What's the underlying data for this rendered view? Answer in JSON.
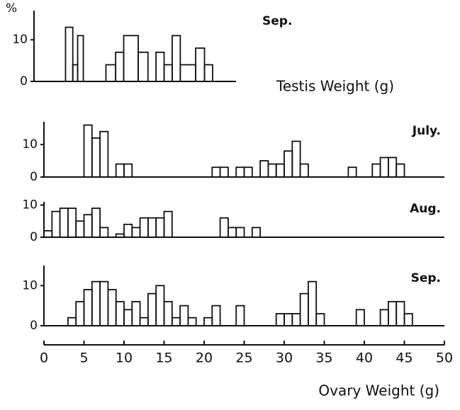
{
  "chart_data": [
    {
      "type": "histogram",
      "title": "Sep.",
      "xlabel": "Testis Weight (g)",
      "ylabel": "%",
      "bins": [
        3.9,
        4.8,
        5.4,
        6.1,
        8.9,
        10.1,
        11.1,
        12.9,
        14.1,
        15.1,
        16.1,
        17.1,
        18.1,
        20.0,
        21.1,
        22.1
      ],
      "values": [
        13,
        4,
        11,
        0,
        4,
        7,
        11,
        7,
        0,
        7,
        4,
        11,
        4,
        8,
        4
      ],
      "xlim": [
        0,
        25
      ],
      "ylim": [
        0,
        17
      ],
      "yticks": [
        0,
        10
      ],
      "color": "#111111"
    },
    {
      "type": "histogram",
      "title": "July.",
      "bins": [
        5,
        6,
        7,
        8,
        9,
        10,
        11,
        12,
        13,
        14,
        15,
        16,
        17,
        18,
        19,
        20,
        21,
        22,
        23,
        24,
        25,
        26,
        27,
        28,
        29,
        30,
        31,
        32,
        33,
        34,
        35,
        36,
        37,
        38,
        39,
        40,
        41,
        42,
        43,
        44,
        45
      ],
      "values": [
        16,
        12,
        14,
        0,
        4,
        4,
        0,
        0,
        0,
        0,
        0,
        0,
        0,
        0,
        0,
        0,
        3,
        3,
        0,
        3,
        3,
        0,
        5,
        4,
        4,
        8,
        11,
        4,
        0,
        0,
        0,
        0,
        0,
        3,
        0,
        0,
        4,
        6,
        6,
        4
      ],
      "xlim": [
        0,
        50
      ],
      "ylim": [
        0,
        17
      ],
      "yticks": [
        0,
        10
      ],
      "color": "#111111"
    },
    {
      "type": "histogram",
      "title": "Aug.",
      "bins": [
        0,
        1,
        2,
        3,
        4,
        5,
        6,
        7,
        8,
        9,
        10,
        11,
        12,
        13,
        14,
        15,
        16,
        17,
        18,
        19,
        20,
        21,
        22,
        23,
        24,
        25,
        26,
        27
      ],
      "values": [
        2,
        8,
        9,
        9,
        5,
        7,
        9,
        3,
        0,
        1,
        4,
        3,
        6,
        6,
        6,
        8,
        0,
        0,
        0,
        0,
        0,
        0,
        6,
        3,
        3,
        0,
        3
      ],
      "xlim": [
        0,
        50
      ],
      "ylim": [
        0,
        11
      ],
      "yticks": [
        0,
        10
      ],
      "color": "#111111"
    },
    {
      "type": "histogram",
      "title": "Sep.",
      "xlabel": "Ovary Weight (g)",
      "bins": [
        3,
        4,
        5,
        6,
        7,
        8,
        9,
        10,
        11,
        12,
        13,
        14,
        15,
        16,
        17,
        18,
        19,
        20,
        21,
        22,
        23,
        24,
        25,
        26,
        27,
        28,
        29,
        30,
        31,
        32,
        33,
        34,
        35,
        36,
        37,
        38,
        39,
        40,
        41,
        42,
        43,
        44,
        45,
        46
      ],
      "values": [
        2,
        6,
        9,
        11,
        11,
        9,
        6,
        4,
        6,
        2,
        8,
        10,
        6,
        2,
        5,
        2,
        0,
        2,
        5,
        0,
        0,
        5,
        0,
        0,
        0,
        0,
        3,
        3,
        3,
        8,
        11,
        3,
        0,
        0,
        0,
        0,
        4,
        0,
        0,
        4,
        6,
        6,
        3
      ],
      "xlim": [
        0,
        50
      ],
      "xticks": [
        0,
        5,
        10,
        15,
        20,
        25,
        30,
        35,
        40,
        45,
        50
      ],
      "ylim": [
        0,
        15
      ],
      "yticks": [
        0,
        10
      ],
      "color": "#111111"
    }
  ]
}
